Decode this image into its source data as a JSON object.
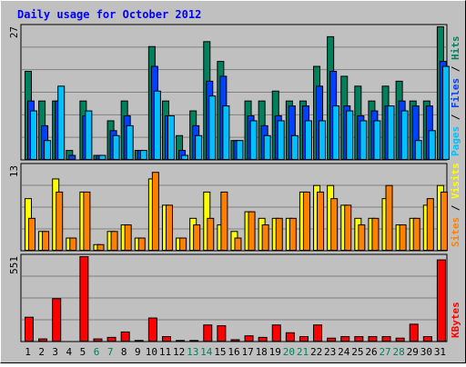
{
  "title": "Daily usage for October 2012",
  "colors": {
    "frame_bg": "#c0c0c0",
    "plot_bg": "#c0c0c0",
    "title": "#0000ff",
    "grid": "#808080",
    "hits": "#00805c",
    "files": "#0040ff",
    "pages": "#00c0ff",
    "visits": "#ffff00",
    "sites": "#ff8000",
    "kbytes": "#ff0000",
    "weekend_label": "#00805c",
    "weekday_label": "#000000"
  },
  "chart_data": [
    {
      "type": "bar",
      "panel": "hits",
      "y_max_label": "27",
      "ylim": [
        0,
        27
      ],
      "legend": [
        {
          "text": "Pages",
          "color_key": "pages"
        },
        {
          "text": " / ",
          "color_key": "sep"
        },
        {
          "text": "Files",
          "color_key": "files"
        },
        {
          "text": " / ",
          "color_key": "sep"
        },
        {
          "text": "Hits",
          "color_key": "hits"
        }
      ],
      "categories": [
        "1",
        "2",
        "3",
        "4",
        "5",
        "6",
        "7",
        "8",
        "9",
        "10",
        "11",
        "12",
        "13",
        "14",
        "15",
        "16",
        "17",
        "18",
        "19",
        "20",
        "21",
        "22",
        "23",
        "24",
        "25",
        "26",
        "27",
        "28",
        "29",
        "30",
        "31"
      ],
      "series": [
        {
          "name": "Hits",
          "color_key": "hits",
          "values": [
            18,
            12,
            12,
            2,
            12,
            1,
            8,
            12,
            2,
            23,
            12,
            5,
            10,
            24,
            20,
            4,
            12,
            12,
            14,
            12,
            12,
            19,
            25,
            17,
            15,
            12,
            15,
            16,
            12,
            12,
            27
          ]
        },
        {
          "name": "Files",
          "color_key": "files",
          "values": [
            12,
            7,
            12,
            1,
            9,
            1,
            6,
            9,
            2,
            19,
            9,
            2,
            7,
            16,
            17,
            4,
            9,
            7,
            9,
            11,
            11,
            15,
            18,
            11,
            9,
            10,
            11,
            12,
            11,
            11,
            20
          ]
        },
        {
          "name": "Pages",
          "color_key": "pages",
          "values": [
            10,
            4,
            15,
            0,
            10,
            1,
            5,
            7,
            2,
            14,
            9,
            1,
            5,
            13,
            11,
            4,
            8,
            5,
            8,
            5,
            8,
            8,
            11,
            10,
            8,
            8,
            11,
            10,
            4,
            6,
            19
          ]
        }
      ]
    },
    {
      "type": "bar",
      "panel": "visits",
      "y_max_label": "13",
      "ylim": [
        0,
        13
      ],
      "legend": [
        {
          "text": "Sites",
          "color_key": "sites"
        },
        {
          "text": " / ",
          "color_key": "sep"
        },
        {
          "text": "Visits",
          "color_key": "visits"
        }
      ],
      "categories": [
        "1",
        "2",
        "3",
        "4",
        "5",
        "6",
        "7",
        "8",
        "9",
        "10",
        "11",
        "12",
        "13",
        "14",
        "15",
        "16",
        "17",
        "18",
        "19",
        "20",
        "21",
        "22",
        "23",
        "24",
        "25",
        "26",
        "27",
        "28",
        "29",
        "30",
        "31"
      ],
      "series": [
        {
          "name": "Visits",
          "color_key": "visits",
          "values": [
            8,
            3,
            11,
            2,
            9,
            1,
            3,
            4,
            2,
            11,
            7,
            2,
            5,
            9,
            4,
            3,
            6,
            5,
            5,
            5,
            9,
            10,
            10,
            7,
            5,
            5,
            8,
            4,
            5,
            7,
            10
          ]
        },
        {
          "name": "Sites",
          "color_key": "sites",
          "values": [
            5,
            3,
            9,
            2,
            9,
            1,
            3,
            4,
            2,
            12,
            7,
            2,
            4,
            5,
            9,
            2,
            6,
            4,
            5,
            5,
            9,
            9,
            8,
            7,
            4,
            5,
            10,
            4,
            5,
            8,
            9
          ]
        }
      ]
    },
    {
      "type": "bar",
      "panel": "kbytes",
      "y_max_label": "551",
      "ylim": [
        0,
        551
      ],
      "legend": [
        {
          "text": "KBytes",
          "color_key": "kbytes"
        }
      ],
      "categories": [
        "1",
        "2",
        "3",
        "4",
        "5",
        "6",
        "7",
        "8",
        "9",
        "10",
        "11",
        "12",
        "13",
        "14",
        "15",
        "16",
        "17",
        "18",
        "19",
        "20",
        "21",
        "22",
        "23",
        "24",
        "25",
        "26",
        "27",
        "28",
        "29",
        "30",
        "31"
      ],
      "series": [
        {
          "name": "KBytes",
          "color_key": "kbytes",
          "values": [
            160,
            20,
            280,
            5,
            551,
            20,
            30,
            65,
            10,
            155,
            35,
            10,
            10,
            110,
            105,
            15,
            40,
            30,
            110,
            60,
            35,
            110,
            25,
            35,
            35,
            35,
            35,
            25,
            115,
            35,
            530
          ]
        }
      ]
    }
  ],
  "x_labels": [
    {
      "text": "1",
      "weekend": false
    },
    {
      "text": "2",
      "weekend": false
    },
    {
      "text": "3",
      "weekend": false
    },
    {
      "text": "4",
      "weekend": false
    },
    {
      "text": "5",
      "weekend": false
    },
    {
      "text": "6",
      "weekend": true
    },
    {
      "text": "7",
      "weekend": true
    },
    {
      "text": "8",
      "weekend": false
    },
    {
      "text": "9",
      "weekend": false
    },
    {
      "text": "10",
      "weekend": false
    },
    {
      "text": "11",
      "weekend": false
    },
    {
      "text": "12",
      "weekend": false
    },
    {
      "text": "13",
      "weekend": true
    },
    {
      "text": "14",
      "weekend": true
    },
    {
      "text": "15",
      "weekend": false
    },
    {
      "text": "16",
      "weekend": false
    },
    {
      "text": "17",
      "weekend": false
    },
    {
      "text": "18",
      "weekend": false
    },
    {
      "text": "19",
      "weekend": false
    },
    {
      "text": "20",
      "weekend": true
    },
    {
      "text": "21",
      "weekend": true
    },
    {
      "text": "22",
      "weekend": false
    },
    {
      "text": "23",
      "weekend": false
    },
    {
      "text": "24",
      "weekend": false
    },
    {
      "text": "25",
      "weekend": false
    },
    {
      "text": "26",
      "weekend": false
    },
    {
      "text": "27",
      "weekend": true
    },
    {
      "text": "28",
      "weekend": true
    },
    {
      "text": "29",
      "weekend": false
    },
    {
      "text": "30",
      "weekend": false
    },
    {
      "text": "31",
      "weekend": false
    }
  ]
}
